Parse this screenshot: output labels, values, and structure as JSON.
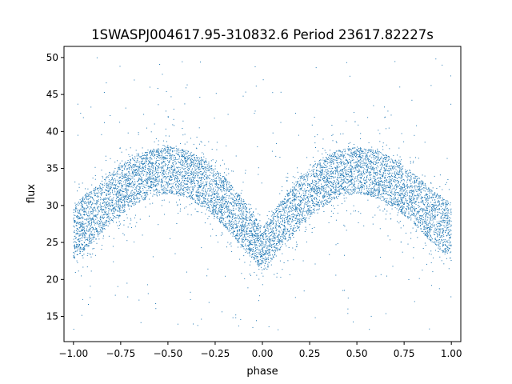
{
  "chart_data": {
    "type": "scatter",
    "title": "1SWASPJ004617.95-310832.6 Period 23617.82227s",
    "xlabel": "phase",
    "ylabel": "flux",
    "xlim": [
      -1.05,
      1.05
    ],
    "ylim": [
      11.6,
      51.5
    ],
    "xticks": [
      -1.0,
      -0.75,
      -0.5,
      -0.25,
      0.0,
      0.25,
      0.5,
      0.75,
      1.0
    ],
    "xtick_labels": [
      "−1.00",
      "−0.75",
      "−0.50",
      "−0.25",
      "0.00",
      "0.25",
      "0.50",
      "0.75",
      "1.00"
    ],
    "yticks": [
      15,
      20,
      25,
      30,
      35,
      40,
      45,
      50
    ],
    "ytick_labels": [
      "15",
      "20",
      "25",
      "30",
      "35",
      "40",
      "45",
      "50"
    ],
    "grid": false,
    "legend": "none",
    "point_color": "#1f77b4",
    "series": [
      {
        "x": [
          -1.0,
          -0.9,
          -0.8,
          -0.7,
          -0.6,
          -0.5,
          -0.4,
          -0.3,
          -0.2,
          -0.1,
          0.0,
          0.1,
          0.2,
          0.3,
          0.4,
          0.5,
          0.6,
          0.7,
          0.8,
          0.9,
          1.0
        ],
        "y": [
          26.5,
          28.5,
          31.0,
          33.0,
          34.3,
          34.8,
          34.3,
          32.8,
          30.5,
          27.5,
          24.0,
          27.5,
          30.5,
          32.8,
          34.3,
          34.8,
          34.3,
          33.0,
          31.0,
          28.5,
          26.5
        ],
        "band_halfwidth": [
          3.8,
          3.6,
          3.4,
          3.3,
          3.2,
          3.2,
          3.2,
          3.3,
          3.4,
          3.3,
          3.0,
          3.3,
          3.4,
          3.3,
          3.2,
          3.2,
          3.2,
          3.3,
          3.4,
          3.6,
          3.8
        ]
      }
    ]
  }
}
